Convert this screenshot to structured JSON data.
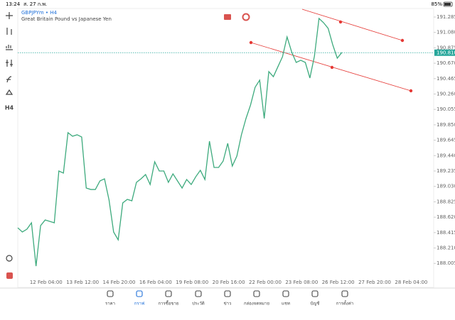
{
  "status_bar": {
    "time": "13:24",
    "date": "ส. 27 ก.พ.",
    "battery": "85%"
  },
  "header": {
    "symbol": "GBPJPYm • H4",
    "description": "Great Britain Pound vs Japanese Yen"
  },
  "toolbar": {
    "timeframe": "H4"
  },
  "chart_data": {
    "type": "line",
    "series": [
      {
        "name": "GBPJPYm",
        "color": "#3daa7d",
        "values": [
          188.479,
          188.423,
          188.46,
          188.545,
          187.969,
          188.508,
          188.583,
          188.564,
          188.545,
          189.235,
          189.207,
          189.745,
          189.698,
          189.717,
          189.688,
          189.008,
          188.989,
          188.989,
          189.103,
          189.131,
          188.848,
          188.423,
          188.319,
          188.81,
          188.857,
          188.838,
          189.084,
          189.131,
          189.188,
          189.055,
          189.358,
          189.235,
          189.235,
          189.084,
          189.197,
          189.103,
          189.008,
          189.122,
          189.055,
          189.159,
          189.244,
          189.122,
          189.632,
          189.282,
          189.282,
          189.367,
          189.603,
          189.301,
          189.433,
          189.717,
          189.934,
          190.114,
          190.35,
          190.444,
          189.934,
          190.558,
          190.491,
          190.624,
          190.756,
          191.02,
          190.822,
          190.68,
          190.709,
          190.68,
          190.473,
          190.765,
          191.266,
          191.209,
          191.134,
          190.917,
          190.737,
          190.813
        ]
      }
    ],
    "x_labels": [
      "12 Feb 04:00",
      "13 Feb 12:00",
      "14 Feb 20:00",
      "16 Feb 04:00",
      "19 Feb 08:00",
      "20 Feb 16:00",
      "22 Feb 00:00",
      "23 Feb 08:00",
      "26 Feb 12:00",
      "27 Feb 20:00",
      "28 Feb 04:00"
    ],
    "ylim": [
      187.686,
      191.398
    ],
    "yticks": [
      {
        "value": 191.285,
        "label": "191.285"
      },
      {
        "value": 191.08,
        "label": "191.080"
      },
      {
        "value": 190.875,
        "label": "190.875"
      },
      {
        "value": 190.67,
        "label": "190.670"
      },
      {
        "value": 190.465,
        "label": "190.465"
      },
      {
        "value": 190.26,
        "label": "190.260"
      },
      {
        "value": 190.055,
        "label": "190.055"
      },
      {
        "value": 189.85,
        "label": "189.850"
      },
      {
        "value": 189.645,
        "label": "189.645"
      },
      {
        "value": 189.44,
        "label": "189.440"
      },
      {
        "value": 189.235,
        "label": "189.235"
      },
      {
        "value": 189.03,
        "label": "189.030"
      },
      {
        "value": 188.825,
        "label": "188.825"
      },
      {
        "value": 188.62,
        "label": "188.620"
      },
      {
        "value": 188.415,
        "label": "188.415"
      },
      {
        "value": 188.21,
        "label": "188.210"
      },
      {
        "value": 188.005,
        "label": "188.005"
      }
    ],
    "current_price": {
      "value": 190.81,
      "label": "190.810",
      "color": "#26a69a"
    }
  },
  "nav": [
    "ราคา",
    "กราฟ",
    "การซื้อขาย",
    "ประวัติ",
    "ข่าว",
    "กล่องจดหมาย",
    "แชท",
    "บัญชี",
    "การตั้งค่า"
  ],
  "active_nav": 1
}
